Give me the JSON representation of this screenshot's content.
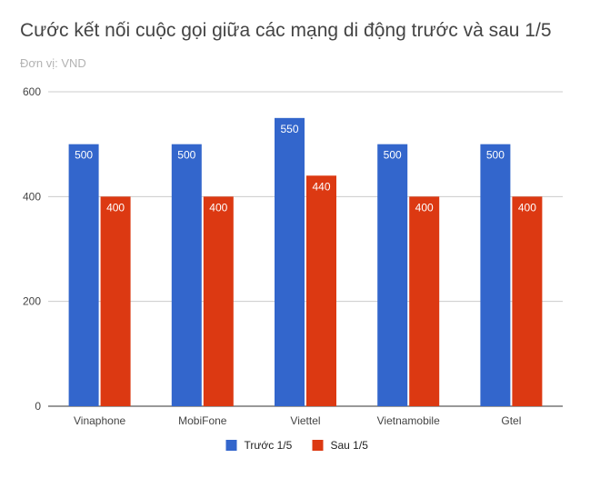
{
  "chart_data": {
    "type": "bar",
    "title": "Cước kết nối cuộc gọi giữa các mạng di động trước và sau 1/5",
    "subtitle": "Đơn vị: VND",
    "categories": [
      "Vinaphone",
      "MobiFone",
      "Viettel",
      "Vietnamobile",
      "Gtel"
    ],
    "series": [
      {
        "name": "Trước 1/5",
        "color": "#3366cc",
        "values": [
          500,
          500,
          550,
          500,
          500
        ]
      },
      {
        "name": "Sau 1/5",
        "color": "#dc3912",
        "values": [
          400,
          400,
          440,
          400,
          400
        ]
      }
    ],
    "ylim": [
      0,
      600
    ],
    "yticks": [
      0,
      200,
      400,
      600
    ],
    "grid": true,
    "legend_position": "bottom",
    "data_labels": true
  }
}
